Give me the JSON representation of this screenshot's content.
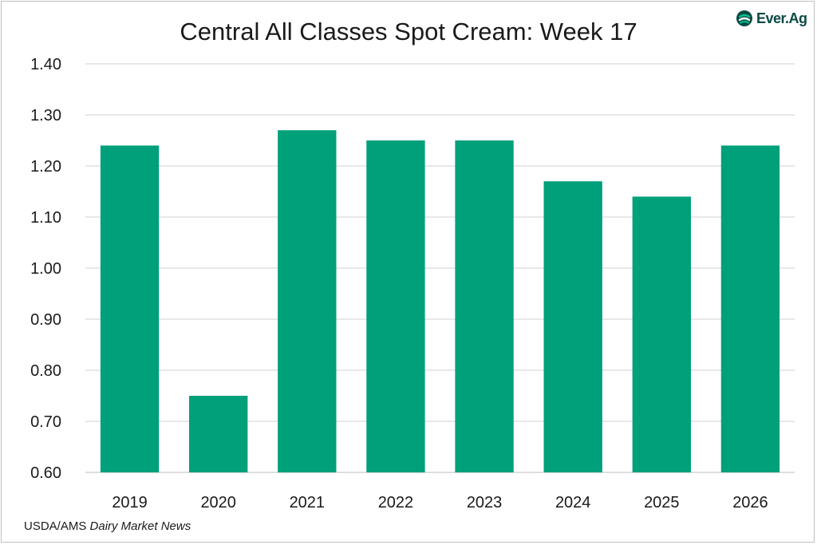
{
  "chart_data": {
    "type": "bar",
    "title": "Central All Classes Spot Cream: Week 17",
    "categories": [
      "2019",
      "2020",
      "2021",
      "2022",
      "2023",
      "2024",
      "2025",
      "2026"
    ],
    "values": [
      1.24,
      0.75,
      1.27,
      1.25,
      1.25,
      1.17,
      1.14,
      1.24
    ],
    "ylim": [
      0.6,
      1.4
    ],
    "yticks": [
      "0.60",
      "0.70",
      "0.80",
      "0.90",
      "1.00",
      "1.10",
      "1.20",
      "1.30",
      "1.40"
    ],
    "xlabel": "",
    "ylabel": "",
    "grid": true,
    "bar_color": "#00a07b"
  },
  "source": {
    "prefix": "USDA/AMS ",
    "italic": "Dairy Market News"
  },
  "logo": {
    "text": "Ever.Ag",
    "icon": "ever-ag-logo-icon",
    "color": "#0c4a44",
    "accent": "#00a07b"
  }
}
